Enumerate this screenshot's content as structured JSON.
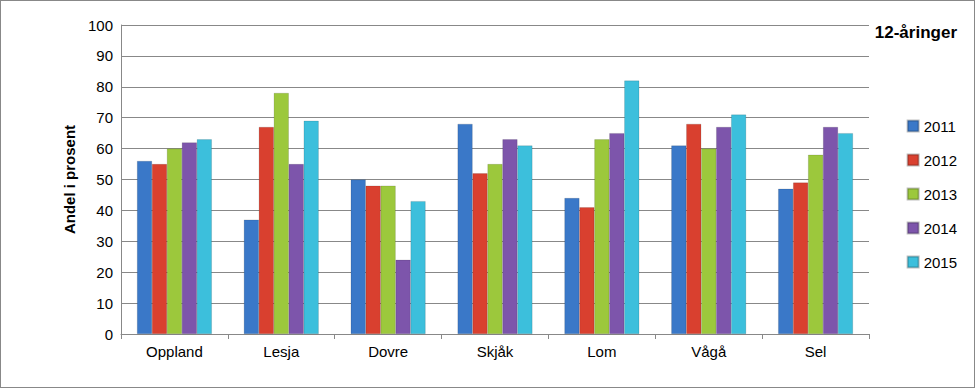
{
  "chart_data": {
    "type": "bar",
    "title": "12-åringer",
    "ylabel": "Andel i prosent",
    "categories": [
      "Oppland",
      "Lesja",
      "Dovre",
      "Skjåk",
      "Lom",
      "Vågå",
      "Sel"
    ],
    "series": [
      {
        "name": "2011",
        "color": "#3a78c8",
        "values": [
          56,
          37,
          50,
          68,
          44,
          61,
          47
        ]
      },
      {
        "name": "2012",
        "color": "#d9402f",
        "values": [
          55,
          67,
          48,
          52,
          41,
          68,
          49
        ]
      },
      {
        "name": "2013",
        "color": "#9cc83c",
        "values": [
          60,
          78,
          48,
          55,
          63,
          60,
          58
        ]
      },
      {
        "name": "2014",
        "color": "#7d55ab",
        "values": [
          62,
          55,
          24,
          63,
          65,
          67,
          67
        ]
      },
      {
        "name": "2015",
        "color": "#3cbfdc",
        "values": [
          63,
          69,
          43,
          61,
          82,
          71,
          65
        ]
      }
    ],
    "ylim": [
      0,
      100
    ],
    "yticks": [
      0,
      10,
      20,
      30,
      40,
      50,
      60,
      70,
      80,
      90,
      100
    ],
    "grid": true,
    "legend": "right"
  }
}
